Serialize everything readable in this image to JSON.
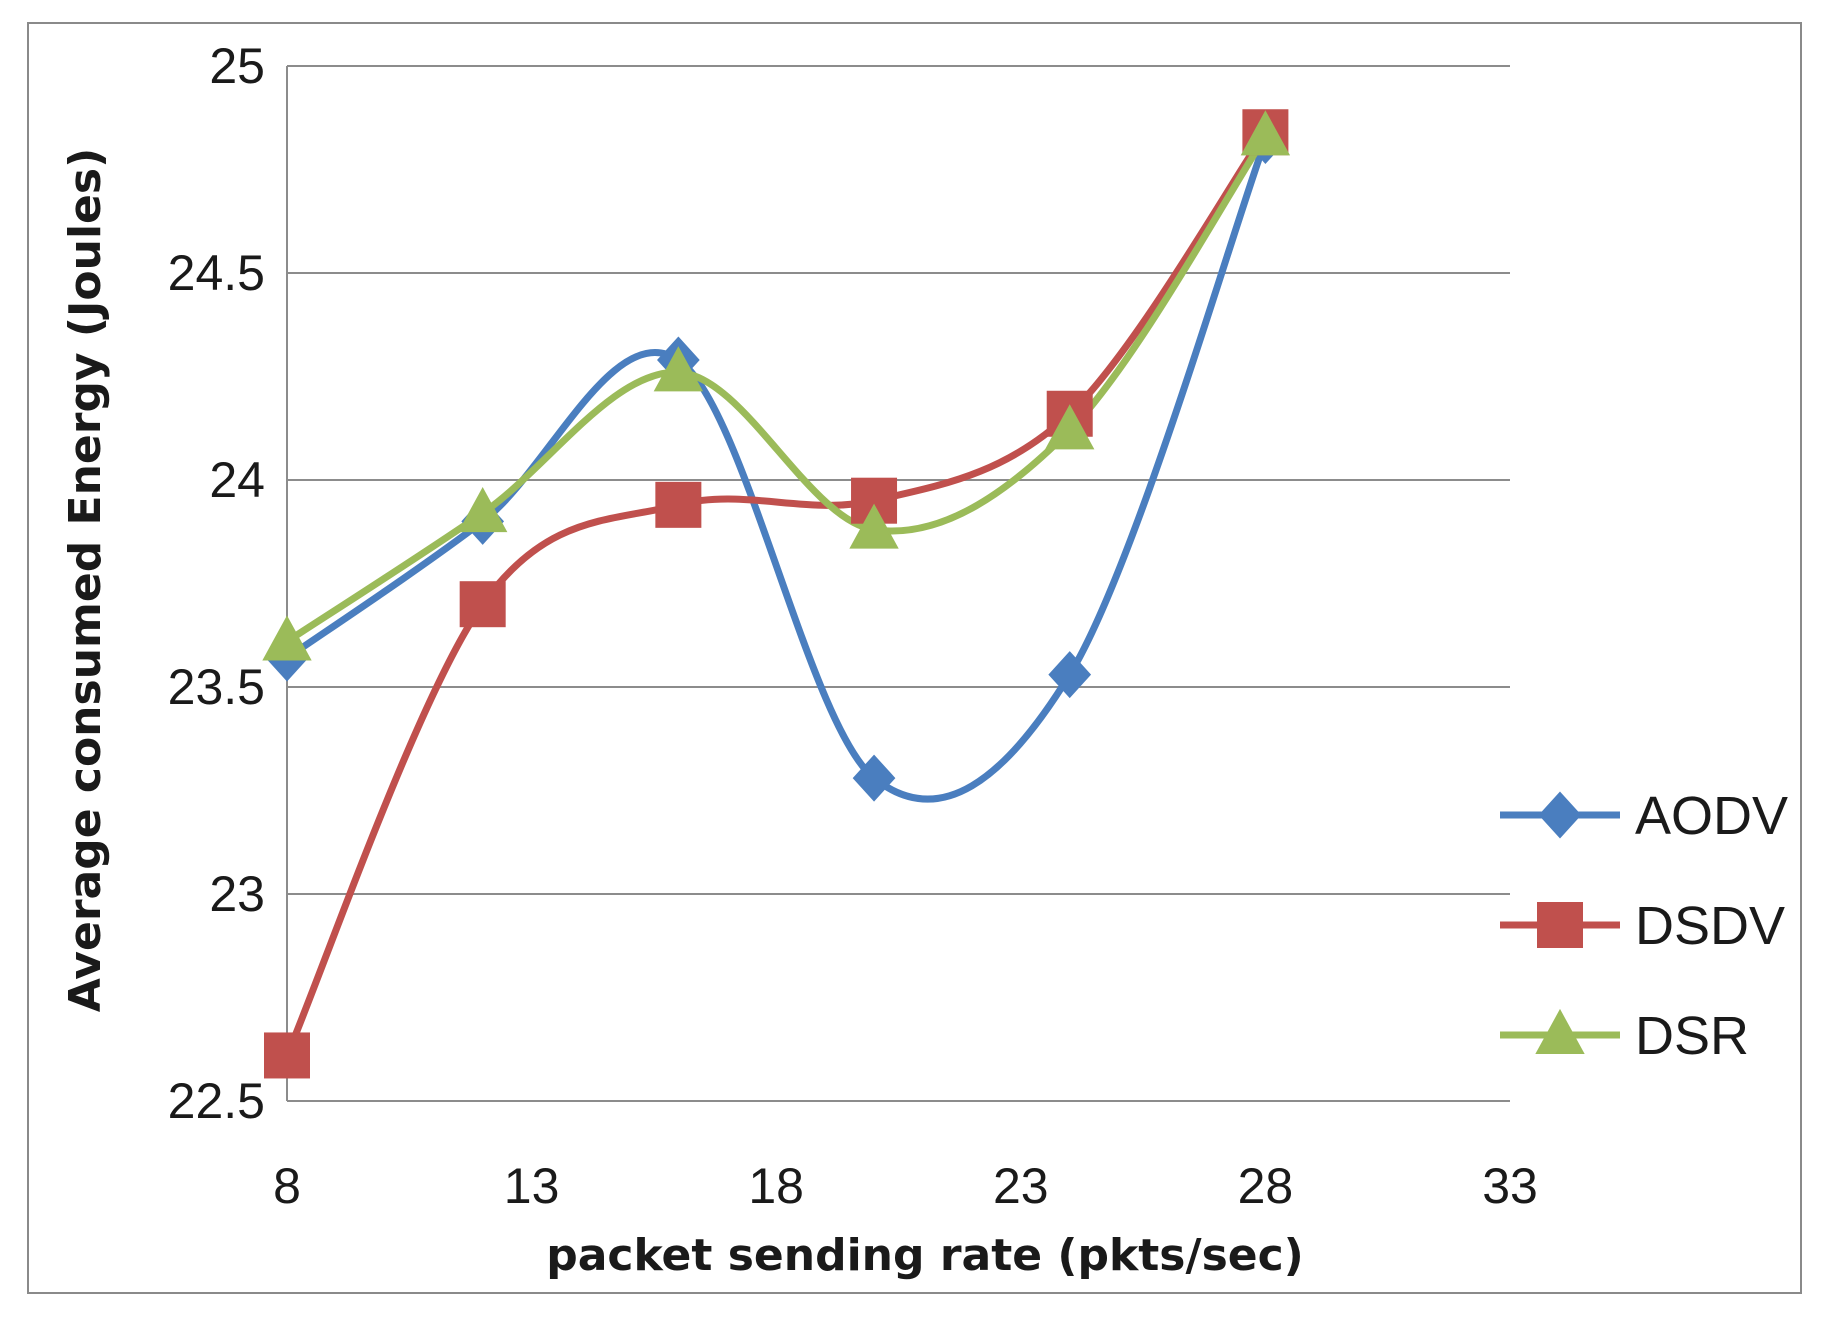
{
  "chart_data": {
    "type": "line",
    "smooth": true,
    "title": "",
    "xlabel": "packet sending rate (pkts/sec)",
    "ylabel": "Average consumed Energy (Joules)",
    "xlim": [
      8,
      33
    ],
    "ylim": [
      22.5,
      25
    ],
    "xticks": [
      8,
      13,
      18,
      23,
      28,
      33
    ],
    "yticks": [
      22.5,
      23,
      23.5,
      24,
      24.5,
      25
    ],
    "xtick_labels": [
      "8",
      "13",
      "18",
      "23",
      "28",
      "33"
    ],
    "ytick_labels": [
      "22.5",
      "23",
      "23.5",
      "24",
      "24.5",
      "25"
    ],
    "grid": "horizontal",
    "legend_position": "right",
    "x": [
      8,
      12,
      16,
      20,
      24,
      28
    ],
    "series": [
      {
        "name": "AODV",
        "color": "#4a7ebf",
        "marker": "diamond",
        "values": [
          23.57,
          23.9,
          24.29,
          23.28,
          23.53,
          24.82
        ]
      },
      {
        "name": "DSDV",
        "color": "#c0504d",
        "marker": "square",
        "values": [
          22.61,
          23.7,
          23.94,
          23.95,
          24.16,
          24.84
        ]
      },
      {
        "name": "DSR",
        "color": "#9bbb59",
        "marker": "triangle",
        "values": [
          23.61,
          23.92,
          24.26,
          23.88,
          24.12,
          24.83
        ]
      }
    ]
  }
}
